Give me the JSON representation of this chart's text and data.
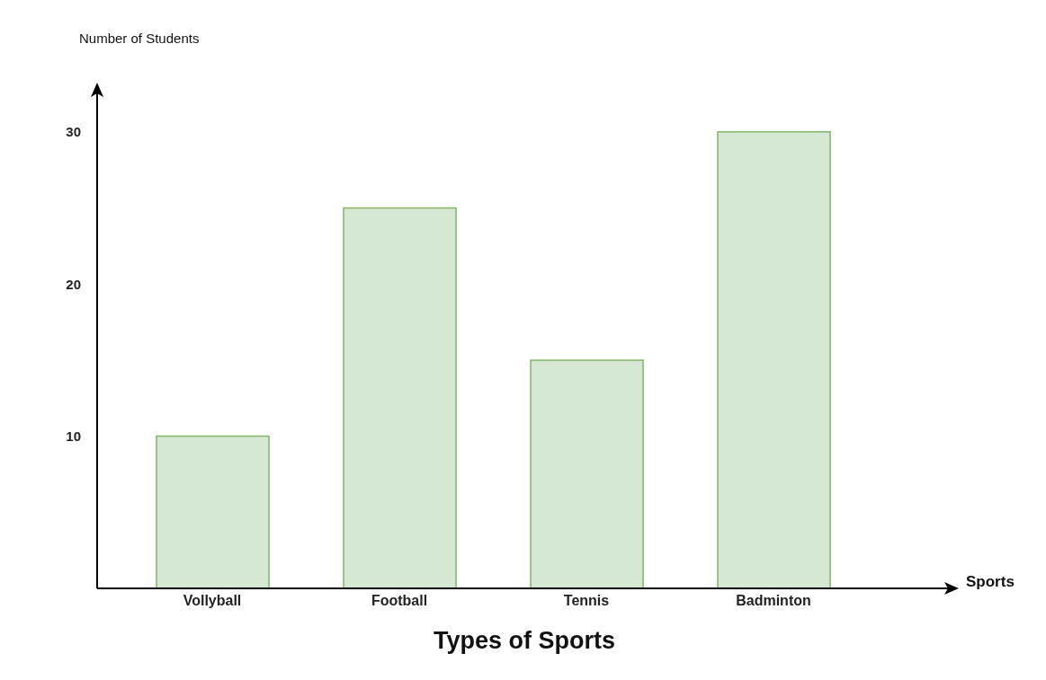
{
  "chart_data": {
    "type": "bar",
    "title": "Types of Sports",
    "xlabel": "Sports",
    "ylabel": "Number of Students",
    "categories": [
      "Vollyball",
      "Football",
      "Tennis",
      "Badminton"
    ],
    "values": [
      10,
      25,
      15,
      30
    ],
    "color": "#d5e8d4",
    "ylim": [
      0,
      33
    ],
    "yticks": [
      10,
      20,
      30
    ],
    "grid": false
  }
}
